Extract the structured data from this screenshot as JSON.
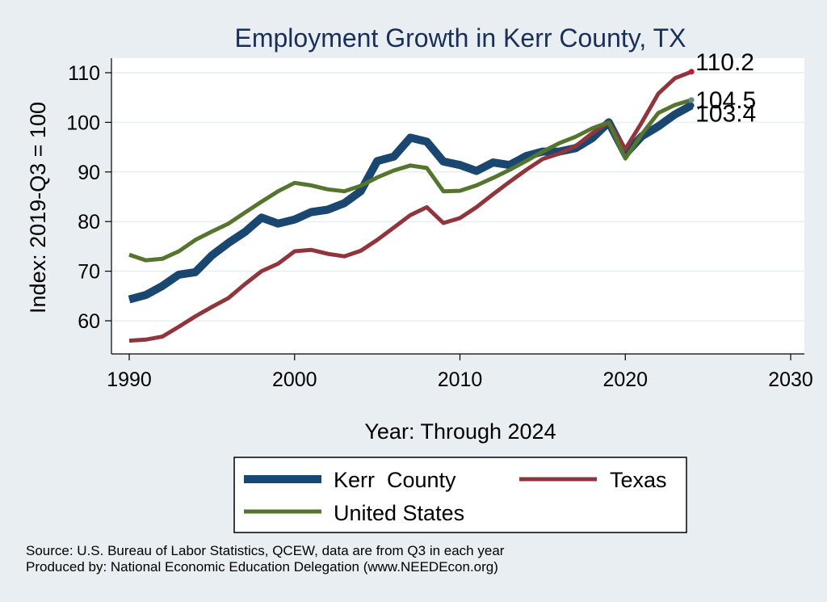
{
  "chart_data": {
    "type": "line",
    "title": "Employment Growth in Kerr County, TX",
    "xlabel": "Year: Through 2024",
    "ylabel": "Index: 2019-Q3 = 100",
    "xlim": [
      1990,
      2030
    ],
    "ylim": [
      53,
      113
    ],
    "xticks": [
      1990,
      2000,
      2010,
      2020,
      2030
    ],
    "yticks": [
      60,
      70,
      80,
      90,
      100,
      110
    ],
    "grid": true,
    "legend_position": "bottom",
    "x": [
      1990,
      1991,
      1992,
      1993,
      1994,
      1995,
      1996,
      1997,
      1998,
      1999,
      2000,
      2001,
      2002,
      2003,
      2004,
      2005,
      2006,
      2007,
      2008,
      2009,
      2010,
      2011,
      2012,
      2013,
      2014,
      2015,
      2016,
      2017,
      2018,
      2019,
      2020,
      2021,
      2022,
      2023,
      2024
    ],
    "series": [
      {
        "name": "Kerr  County",
        "color": "#1a476f",
        "values": [
          64.3,
          65.2,
          67.0,
          69.3,
          69.8,
          73.2,
          75.7,
          77.9,
          80.8,
          79.6,
          80.4,
          81.9,
          82.4,
          83.7,
          86.1,
          92.2,
          93.1,
          96.9,
          96.1,
          92.1,
          91.4,
          90.2,
          91.9,
          91.4,
          93.2,
          94.1,
          94.1,
          94.8,
          96.8,
          100.0,
          93.6,
          97.2,
          99.2,
          101.6,
          103.4
        ]
      },
      {
        "name": "Texas",
        "color": "#90353b",
        "values": [
          56.0,
          56.2,
          56.8,
          58.8,
          60.9,
          62.8,
          64.6,
          67.4,
          70.0,
          71.5,
          74.0,
          74.3,
          73.5,
          73.0,
          74.1,
          76.3,
          78.8,
          81.3,
          82.9,
          79.7,
          80.7,
          82.9,
          85.5,
          88.0,
          90.4,
          92.6,
          93.7,
          95.2,
          97.8,
          100.0,
          94.6,
          100.0,
          105.8,
          108.9,
          110.2
        ]
      },
      {
        "name": "United States",
        "color": "#55752f",
        "values": [
          73.3,
          72.2,
          72.5,
          74.0,
          76.3,
          78.0,
          79.6,
          81.8,
          84.0,
          86.1,
          87.8,
          87.3,
          86.5,
          86.1,
          87.2,
          88.9,
          90.3,
          91.3,
          90.8,
          86.1,
          86.2,
          87.3,
          88.8,
          90.4,
          92.2,
          94.1,
          95.8,
          97.1,
          98.8,
          100.0,
          92.7,
          97.6,
          101.9,
          103.5,
          104.5
        ]
      }
    ],
    "end_labels": [
      {
        "series": "Texas",
        "value": 110.2,
        "text": "110.2"
      },
      {
        "series": "United States",
        "value": 104.5,
        "text": "104.5"
      },
      {
        "series": "Kerr  County",
        "value": 103.4,
        "text": "103.4"
      }
    ],
    "source_lines": [
      "Source: U.S. Bureau of Labor Statistics, QCEW, data are from Q3 in each year",
      "Produced by: National Economic Education Delegation (www.NEEDEcon.org)"
    ]
  }
}
